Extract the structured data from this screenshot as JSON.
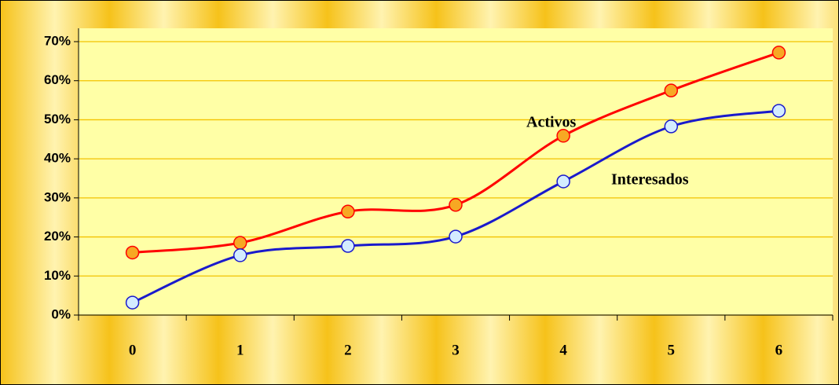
{
  "chart_data": {
    "type": "line",
    "categories": [
      "0",
      "1",
      "2",
      "3",
      "4",
      "5",
      "6"
    ],
    "series": [
      {
        "name": "Activos",
        "color": "#ff0000",
        "marker_color": "#f7a823",
        "values": [
          16,
          18.5,
          26.5,
          28.2,
          45.9,
          57.5,
          67.2
        ]
      },
      {
        "name": "Interesados",
        "color": "#1a1acc",
        "marker_color": "#d4ecff",
        "values": [
          3.2,
          15.3,
          17.7,
          20.1,
          34.2,
          48.3,
          52.3
        ]
      }
    ],
    "ylim": [
      0,
      70
    ],
    "yticks": [
      {
        "value": 0,
        "label": "0%"
      },
      {
        "value": 10,
        "label": "10%"
      },
      {
        "value": 20,
        "label": "20%"
      },
      {
        "value": 30,
        "label": "30%"
      },
      {
        "value": 40,
        "label": "40%"
      },
      {
        "value": 50,
        "label": "50%"
      },
      {
        "value": 60,
        "label": "60%"
      },
      {
        "value": 70,
        "label": "70%"
      }
    ],
    "grid": true
  }
}
